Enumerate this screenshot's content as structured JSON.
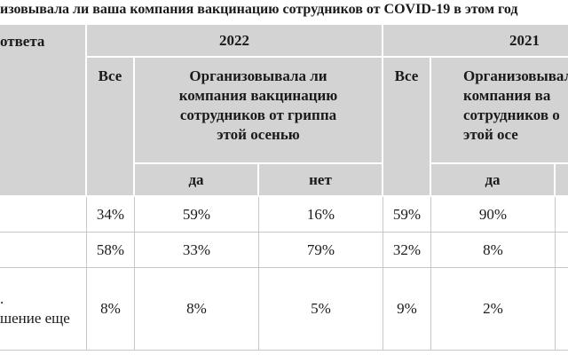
{
  "title": "изовывала ли ваша компания вакцинацию сотрудников от COVID-19 в этом год",
  "table": {
    "header": {
      "first_column": "ответа",
      "years": [
        "2022",
        "2021"
      ],
      "all": [
        "Все",
        "Все"
      ],
      "question_2022": [
        "Организовывала ли",
        "компания вакцинацию",
        "сотрудников от гриппа",
        "этой осенью"
      ],
      "question_2021": [
        "Организовывала л",
        "компания ва",
        "сотрудников о",
        "этой осе"
      ],
      "answers_2022": [
        "да",
        "нет"
      ],
      "answers_2021": [
        "да"
      ]
    },
    "rows": [
      {
        "cells": [
          "34%",
          "59%",
          "16%",
          "59%",
          "90%"
        ]
      },
      {
        "cells": [
          "58%",
          "33%",
          "79%",
          "32%",
          "8%"
        ]
      },
      {
        "label": [
          ".",
          "шение еще"
        ],
        "cells": [
          "8%",
          "8%",
          "5%",
          "9%",
          "2%"
        ]
      }
    ]
  }
}
